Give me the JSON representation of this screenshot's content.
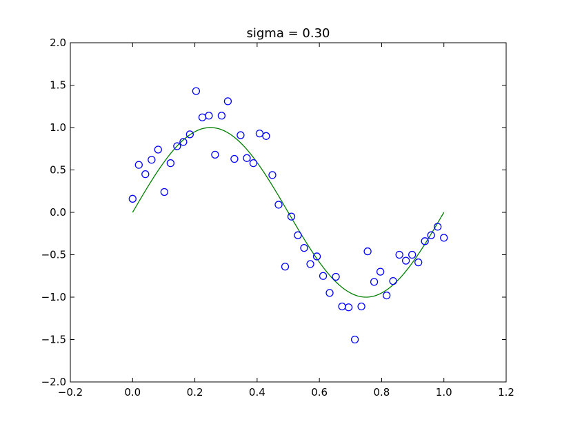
{
  "chart_data": {
    "type": "scatter",
    "title": "sigma = 0.30",
    "xlabel": "",
    "ylabel": "",
    "xlim": [
      -0.2,
      1.2
    ],
    "ylim": [
      -2.0,
      2.0
    ],
    "xticks": [
      "−0.2",
      "0.0",
      "0.2",
      "0.4",
      "0.6",
      "0.8",
      "1.0",
      "1.2"
    ],
    "yticks": [
      "−2.0",
      "−1.5",
      "−1.0",
      "−0.5",
      "0.0",
      "0.5",
      "1.0",
      "1.5",
      "2.0"
    ],
    "grid": false,
    "series": [
      {
        "kind": "points",
        "marker": "open-circle",
        "color": "#0000ff",
        "x": [
          0.0,
          0.02,
          0.041,
          0.061,
          0.082,
          0.102,
          0.122,
          0.143,
          0.163,
          0.184,
          0.204,
          0.224,
          0.245,
          0.265,
          0.286,
          0.306,
          0.327,
          0.347,
          0.367,
          0.388,
          0.408,
          0.429,
          0.449,
          0.469,
          0.49,
          0.51,
          0.531,
          0.551,
          0.571,
          0.592,
          0.612,
          0.633,
          0.653,
          0.673,
          0.694,
          0.714,
          0.735,
          0.755,
          0.776,
          0.796,
          0.816,
          0.837,
          0.857,
          0.878,
          0.898,
          0.918,
          0.939,
          0.959,
          0.98,
          1.0
        ],
        "y": [
          0.16,
          0.56,
          0.45,
          0.62,
          0.74,
          0.24,
          0.58,
          0.78,
          0.83,
          0.92,
          1.43,
          1.12,
          1.14,
          0.68,
          1.14,
          1.31,
          0.63,
          0.91,
          0.64,
          0.58,
          0.93,
          0.9,
          0.44,
          0.09,
          -0.64,
          -0.05,
          -0.27,
          -0.42,
          -0.61,
          -0.52,
          -0.75,
          -0.95,
          -0.76,
          -1.11,
          -1.12,
          -1.5,
          -1.11,
          -0.46,
          -0.82,
          -0.7,
          -0.98,
          -0.81,
          -0.5,
          -0.57,
          -0.5,
          -0.59,
          -0.34,
          -0.27,
          -0.17,
          -0.3
        ]
      },
      {
        "kind": "line",
        "function": "sin(2*pi*x)",
        "color": "#008000",
        "domain": [
          0.0,
          1.0
        ]
      }
    ]
  }
}
